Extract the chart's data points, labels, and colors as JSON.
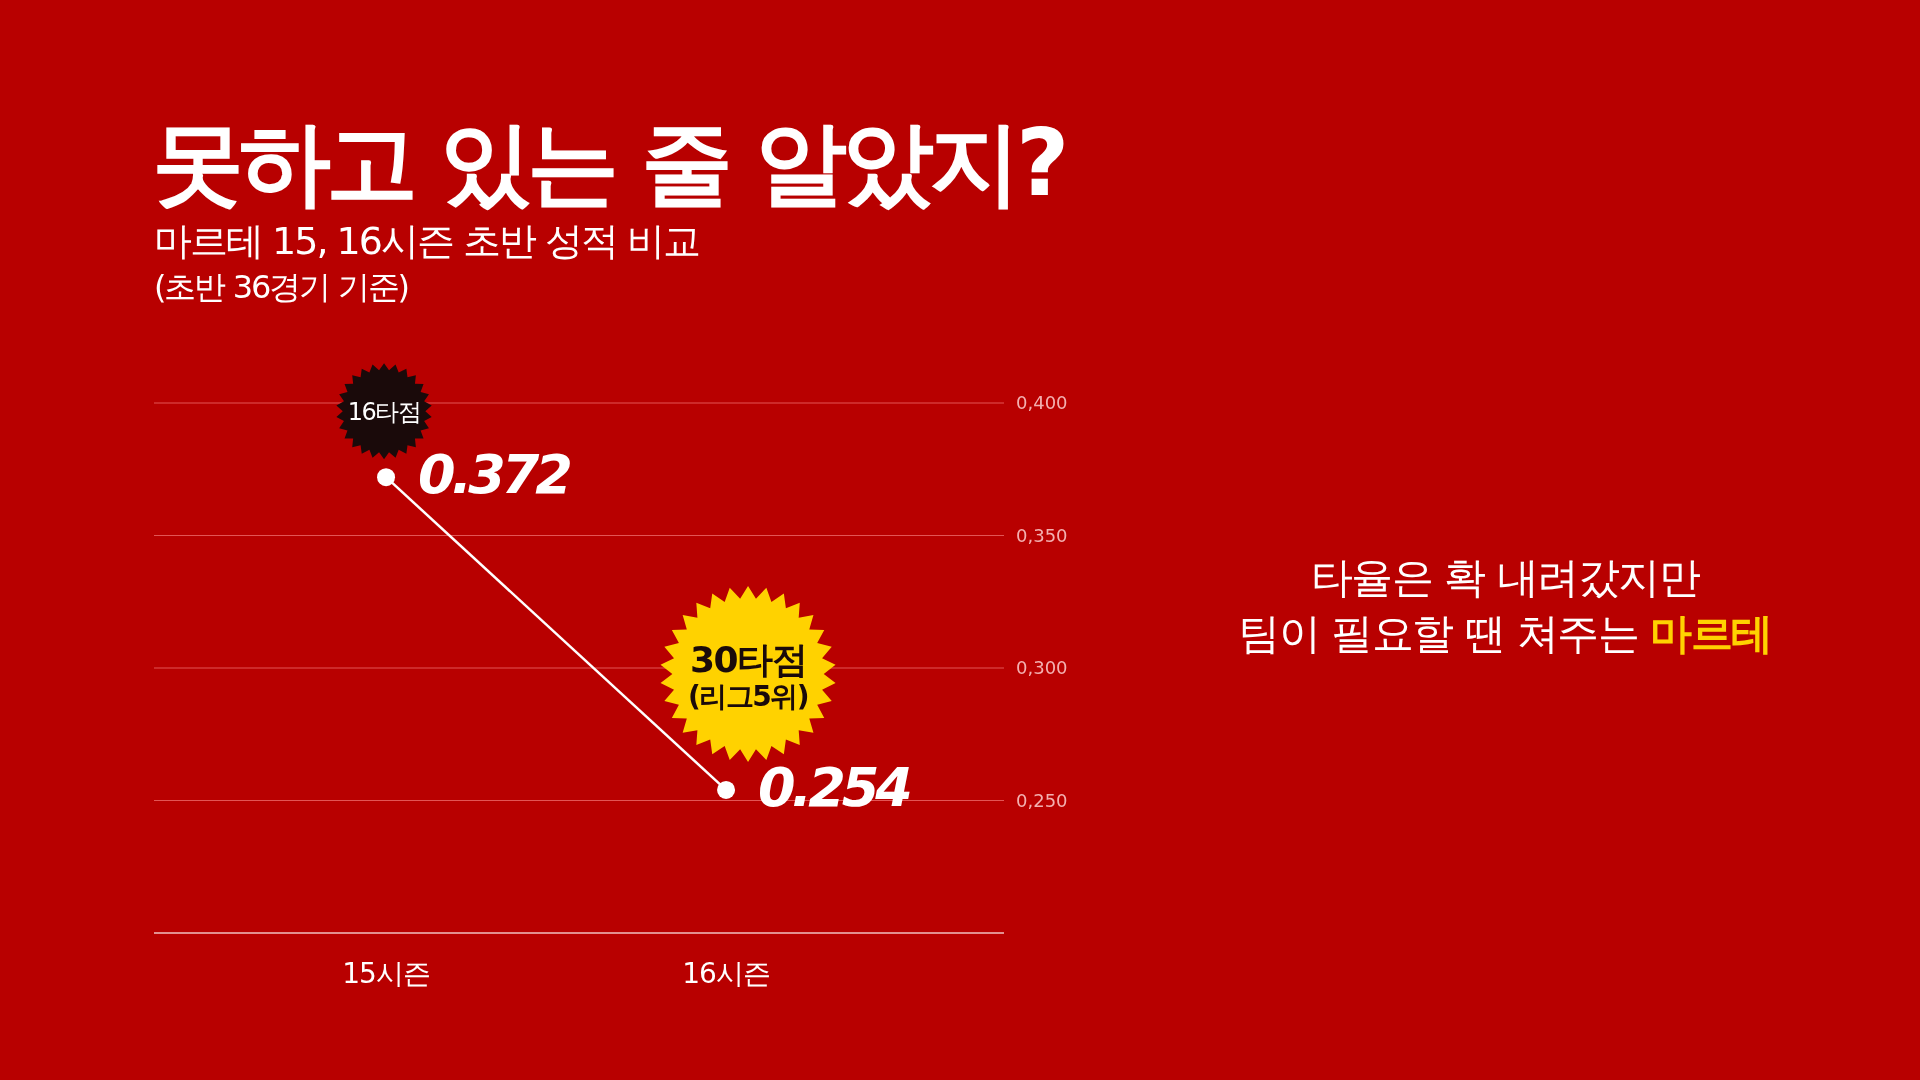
{
  "chart_data": {
    "type": "line",
    "title": "못하고 있는 줄 알았지?",
    "subtitle": "마르테 15, 16시즌 초반 성적 비교\n(초반 36경기 기준)",
    "categories": [
      "15시즌",
      "16시즌"
    ],
    "series": [
      {
        "color": "#ffffff",
        "values": [
          0.372,
          0.254
        ]
      }
    ],
    "ylim": [
      0.2,
      0.4
    ],
    "yticks": [
      {
        "value": 0.25,
        "label": "0,250"
      },
      {
        "value": 0.3,
        "label": "0,300"
      },
      {
        "value": 0.35,
        "label": "0,350"
      },
      {
        "value": 0.4,
        "label": "0,400"
      }
    ],
    "grid": "y",
    "marker": "circle",
    "data_labels": true,
    "annotations": [
      "16타점",
      "30타점\n(리그5위)",
      "타율은 확 내려갔지만\n팀이 필요할 땐 쳐주는 마르테"
    ]
  }
}
